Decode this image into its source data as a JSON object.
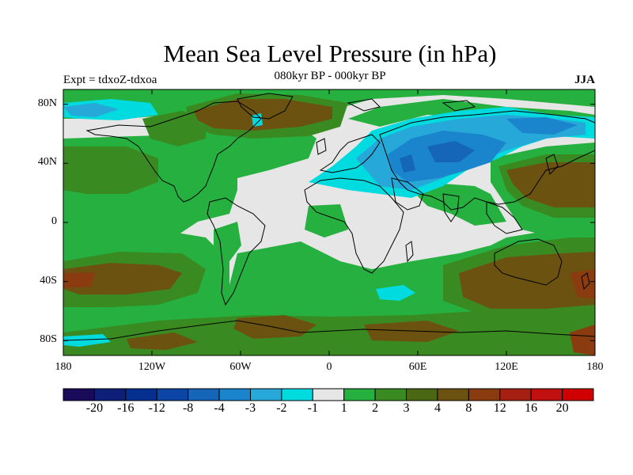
{
  "map": {
    "title": "Mean Sea Level Pressure (in hPa)",
    "subtitle": "080kyr BP - 000kyr BP",
    "left_label": "Expt = tdxoZ-tdxoa",
    "right_label": "JJA",
    "projection": "cylindrical equidistant",
    "lon_range": [
      -180,
      180
    ],
    "lat_range": [
      -90,
      90
    ],
    "lat_ticks": [
      {
        "value": 80,
        "label": "80N"
      },
      {
        "value": 40,
        "label": "40N"
      },
      {
        "value": 0,
        "label": "0"
      },
      {
        "value": -40,
        "label": "40S"
      },
      {
        "value": -80,
        "label": "80S"
      }
    ],
    "lon_ticks": [
      {
        "value": -180,
        "label": "180"
      },
      {
        "value": -120,
        "label": "120W"
      },
      {
        "value": -60,
        "label": "60W"
      },
      {
        "value": 0,
        "label": "0"
      },
      {
        "value": 60,
        "label": "60E"
      },
      {
        "value": 120,
        "label": "120E"
      },
      {
        "value": 180,
        "label": "180"
      }
    ],
    "background_color": "#e6e6e6",
    "coastline_color": "#000000"
  },
  "colorbar": {
    "labels": [
      "-20",
      "-16",
      "-12",
      "-8",
      "-4",
      "-3",
      "-2",
      "-1",
      "1",
      "2",
      "3",
      "4",
      "8",
      "12",
      "16",
      "20"
    ],
    "colors": [
      "#1a0a5a",
      "#0d1f78",
      "#06308f",
      "#0b45a5",
      "#1565b8",
      "#1a85cc",
      "#26a8d8",
      "#00dbe0",
      "#e6e6e6",
      "#26b040",
      "#3a8a22",
      "#4a6812",
      "#6c5210",
      "#8a3c10",
      "#a52010",
      "#c01010",
      "#d10000"
    ]
  },
  "regions": [
    {
      "name": "north-atlantic-positive",
      "value": 4,
      "color": "#6c5210"
    },
    {
      "name": "eurasia-negative",
      "value": -3,
      "color": "#1a85cc"
    },
    {
      "name": "eurasia-core-negative",
      "value": -4,
      "color": "#1565b8"
    },
    {
      "name": "south-indian-ocean-positive",
      "value": 4,
      "color": "#6c5210"
    },
    {
      "name": "south-pacific-positive",
      "value": 4,
      "color": "#6c5210"
    },
    {
      "name": "southern-ocean-positive",
      "value": 3,
      "color": "#4a6812"
    },
    {
      "name": "west-pacific-positive",
      "value": 4,
      "color": "#6c5210"
    }
  ]
}
